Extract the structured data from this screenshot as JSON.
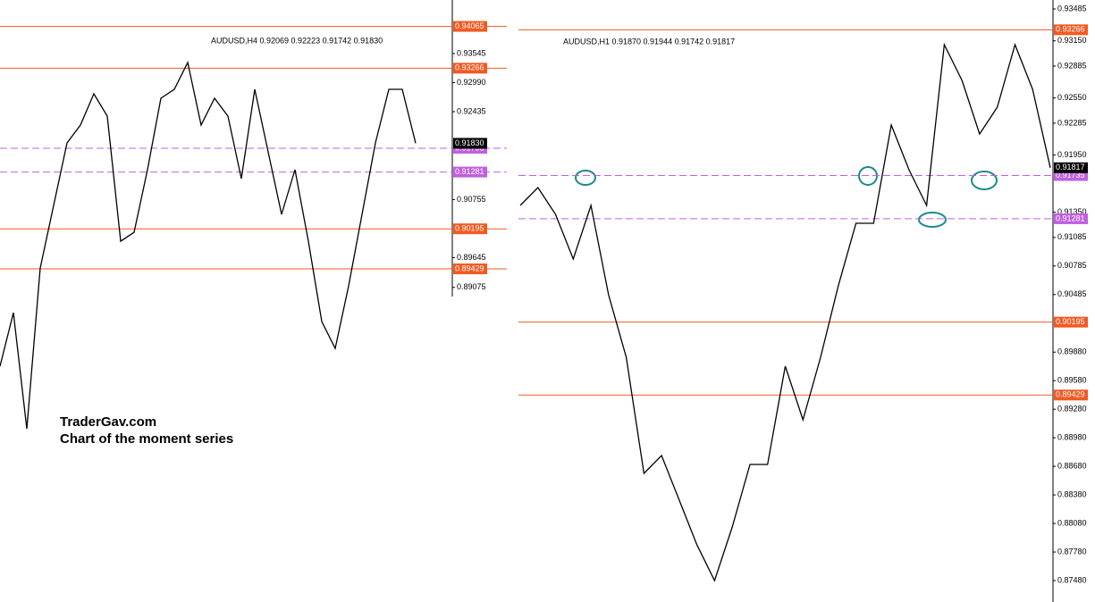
{
  "annotations": [
    "TraderGav.com",
    "Chart of the moment series"
  ],
  "chart_data": [
    {
      "type": "line",
      "title": "AUDUSD,H4  0.92069 0.92223 0.91742 0.91830",
      "color": "#000000",
      "values": [
        0.87567,
        0.88592,
        0.86372,
        0.89446,
        0.90642,
        0.91837,
        0.92179,
        0.92777,
        0.9235,
        0.89958,
        0.90129,
        0.91325,
        0.92691,
        0.92862,
        0.93374,
        0.92179,
        0.92691,
        0.9235,
        0.91154,
        0.92862,
        0.91666,
        0.90471,
        0.91325,
        0.89958,
        0.88421,
        0.87909,
        0.89104,
        0.90471,
        0.91837,
        0.92862,
        0.92862,
        0.9183
      ],
      "ylim": [
        0.8306,
        0.9457
      ],
      "yticks": [
        0.93545,
        {
          "value": 0.9299,
          "label": "0.92990"
        },
        0.92435,
        0.90755,
        0.89645,
        0.89075
      ],
      "levels": [
        {
          "value": 0.94065,
          "color": "#f15a22",
          "dashed": false
        },
        {
          "value": 0.93266,
          "color": "#f15a22",
          "dashed": false
        },
        {
          "value": 0.91735,
          "color": "#c060e0",
          "dashed": true
        },
        {
          "value": 0.91281,
          "color": "#c060e0",
          "dashed": true
        },
        {
          "value": 0.90195,
          "color": "#f15a22",
          "dashed": false
        },
        {
          "value": 0.89429,
          "color": "#f15a22",
          "dashed": false
        }
      ],
      "last": {
        "value": 0.9183,
        "label": "0.91830"
      }
    },
    {
      "type": "line",
      "title": "AUDUSD,H1  0.91870 0.91944 0.91742 0.91817",
      "color": "#000000",
      "values": [
        0.91421,
        0.91609,
        0.91327,
        0.90858,
        0.91421,
        0.90483,
        0.89826,
        0.88606,
        0.88794,
        0.88325,
        0.87855,
        0.8748,
        0.88043,
        0.887,
        0.887,
        0.89732,
        0.89169,
        0.89826,
        0.90576,
        0.91233,
        0.91233,
        0.92265,
        0.91796,
        0.91421,
        0.9311,
        0.92735,
        0.92172,
        0.92453,
        0.9311,
        0.92641,
        0.91817
      ],
      "ylim": [
        0.87255,
        0.93579
      ],
      "yticks": [
        0.93485,
        {
          "value": 0.9315,
          "label": "0.93150"
        },
        0.92885,
        {
          "value": 0.9255,
          "label": "0.92550"
        },
        0.92285,
        {
          "value": 0.9195,
          "label": "0.91950"
        },
        {
          "value": 0.9135,
          "label": "0.91350"
        },
        0.91085,
        0.90785,
        0.90485,
        {
          "value": 0.8988,
          "label": "0.89880"
        },
        {
          "value": 0.8958,
          "label": "0.89580"
        },
        {
          "value": 0.8928,
          "label": "0.89280"
        },
        {
          "value": 0.8898,
          "label": "0.88980"
        },
        {
          "value": 0.8868,
          "label": "0.88680"
        },
        {
          "value": 0.8838,
          "label": "0.88380"
        },
        {
          "value": 0.8808,
          "label": "0.88080"
        },
        {
          "value": 0.8778,
          "label": "0.87780"
        },
        {
          "value": 0.8748,
          "label": "0.87480"
        }
      ],
      "levels": [
        {
          "value": 0.93266,
          "color": "#f15a22",
          "dashed": false
        },
        {
          "value": 0.91735,
          "color": "#c060e0",
          "dashed": true
        },
        {
          "value": 0.91281,
          "color": "#c060e0",
          "dashed": true
        },
        {
          "value": 0.90195,
          "color": "#f15a22",
          "dashed": false
        },
        {
          "value": 0.89429,
          "color": "#f15a22",
          "dashed": false
        }
      ],
      "last": 0.91817
    }
  ]
}
